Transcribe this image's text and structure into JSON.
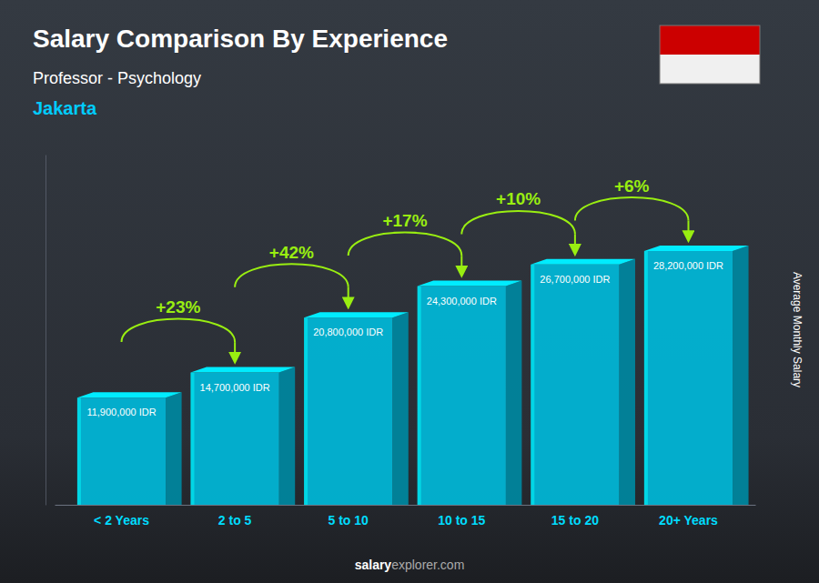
{
  "chart_data": {
    "type": "bar",
    "title": "Salary Comparison By Experience",
    "subtitle": "Professor - Psychology",
    "city": "Jakarta",
    "y_label": "Average Monthly Salary",
    "footer": [
      "salary",
      "explorer.com"
    ],
    "categories": [
      "< 2 Years",
      "2 to 5",
      "5 to 10",
      "10 to 15",
      "15 to 20",
      "20+ Years"
    ],
    "values": [
      11900000,
      14700000,
      20800000,
      24300000,
      26700000,
      28200000
    ],
    "value_labels": [
      "11,900,000 IDR",
      "14,700,000 IDR",
      "20,800,000 IDR",
      "24,300,000 IDR",
      "26,700,000 IDR",
      "28,200,000 IDR"
    ],
    "data_labels": true,
    "annotations": [
      "+23%",
      "+42%",
      "+17%",
      "+10%",
      "+6%"
    ],
    "color": "#00b8d9",
    "ylim": [
      0,
      38916000
    ],
    "tick_labels": "x",
    "grid": false
  }
}
